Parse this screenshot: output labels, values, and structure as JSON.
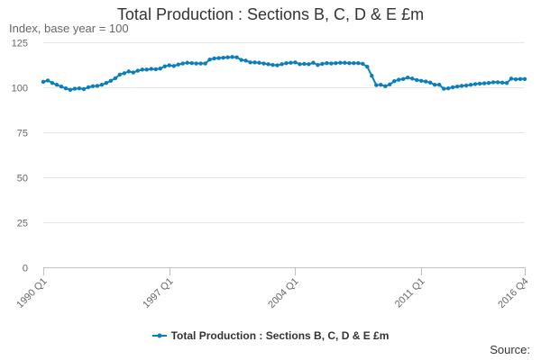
{
  "chart_data": {
    "type": "line",
    "title": "Total Production : Sections B, C, D & E £m",
    "ylabel": "Index, base year = 100",
    "xlabel": "",
    "ylim": [
      0,
      125
    ],
    "yticks": [
      0,
      25,
      50,
      75,
      100,
      125
    ],
    "x_tick_labels": [
      "1990 Q1",
      "1997 Q1",
      "2004 Q1",
      "2011 Q1",
      "2016 Q4"
    ],
    "x_tick_indices": [
      0,
      28,
      56,
      84,
      107
    ],
    "grid": true,
    "legend_position": "bottom",
    "color": "#0b7fbd",
    "x": [
      "1990 Q1",
      "1990 Q2",
      "1990 Q3",
      "1990 Q4",
      "1991 Q1",
      "1991 Q2",
      "1991 Q3",
      "1991 Q4",
      "1992 Q1",
      "1992 Q2",
      "1992 Q3",
      "1992 Q4",
      "1993 Q1",
      "1993 Q2",
      "1993 Q3",
      "1993 Q4",
      "1994 Q1",
      "1994 Q2",
      "1994 Q3",
      "1994 Q4",
      "1995 Q1",
      "1995 Q2",
      "1995 Q3",
      "1995 Q4",
      "1996 Q1",
      "1996 Q2",
      "1996 Q3",
      "1996 Q4",
      "1997 Q1",
      "1997 Q2",
      "1997 Q3",
      "1997 Q4",
      "1998 Q1",
      "1998 Q2",
      "1998 Q3",
      "1998 Q4",
      "1999 Q1",
      "1999 Q2",
      "1999 Q3",
      "1999 Q4",
      "2000 Q1",
      "2000 Q2",
      "2000 Q3",
      "2000 Q4",
      "2001 Q1",
      "2001 Q2",
      "2001 Q3",
      "2001 Q4",
      "2002 Q1",
      "2002 Q2",
      "2002 Q3",
      "2002 Q4",
      "2003 Q1",
      "2003 Q2",
      "2003 Q3",
      "2003 Q4",
      "2004 Q1",
      "2004 Q2",
      "2004 Q3",
      "2004 Q4",
      "2005 Q1",
      "2005 Q2",
      "2005 Q3",
      "2005 Q4",
      "2006 Q1",
      "2006 Q2",
      "2006 Q3",
      "2006 Q4",
      "2007 Q1",
      "2007 Q2",
      "2007 Q3",
      "2007 Q4",
      "2008 Q1",
      "2008 Q2",
      "2008 Q3",
      "2008 Q4",
      "2009 Q1",
      "2009 Q2",
      "2009 Q3",
      "2009 Q4",
      "2010 Q1",
      "2010 Q2",
      "2010 Q3",
      "2010 Q4",
      "2011 Q1",
      "2011 Q2",
      "2011 Q3",
      "2011 Q4",
      "2012 Q1",
      "2012 Q2",
      "2012 Q3",
      "2012 Q4",
      "2013 Q1",
      "2013 Q2",
      "2013 Q3",
      "2013 Q4",
      "2014 Q1",
      "2014 Q2",
      "2014 Q3",
      "2014 Q4",
      "2015 Q1",
      "2015 Q2",
      "2015 Q3",
      "2015 Q4",
      "2016 Q1",
      "2016 Q2",
      "2016 Q3",
      "2016 Q4"
    ],
    "series": [
      {
        "name": "Total Production : Sections B, C, D & E £m",
        "values": [
          102.8,
          103.6,
          102.2,
          101.2,
          100.2,
          99.2,
          98.4,
          99.0,
          99.2,
          98.8,
          99.8,
          100.4,
          100.6,
          101.2,
          102.2,
          103.4,
          104.8,
          106.8,
          107.6,
          108.6,
          108.0,
          109.0,
          109.6,
          109.6,
          110.0,
          109.8,
          110.2,
          111.4,
          112.0,
          111.6,
          112.4,
          113.0,
          113.4,
          113.2,
          113.0,
          113.0,
          113.0,
          115.2,
          115.8,
          116.0,
          116.2,
          116.4,
          116.6,
          116.4,
          115.0,
          114.6,
          113.6,
          113.6,
          113.4,
          113.0,
          112.6,
          112.2,
          112.0,
          112.6,
          113.2,
          113.4,
          113.6,
          112.6,
          112.8,
          112.6,
          113.4,
          112.2,
          112.8,
          113.2,
          113.0,
          113.2,
          113.4,
          113.4,
          113.2,
          113.2,
          113.2,
          112.8,
          111.2,
          106.2,
          101.0,
          101.2,
          100.4,
          101.4,
          103.2,
          104.0,
          104.4,
          105.2,
          104.6,
          103.8,
          103.4,
          103.0,
          102.4,
          101.2,
          101.2,
          99.0,
          99.2,
          99.8,
          100.2,
          100.6,
          100.8,
          101.2,
          101.6,
          101.8,
          102.0,
          102.2,
          102.6,
          102.6,
          102.4,
          102.2,
          104.6,
          104.2,
          104.4,
          104.4
        ]
      }
    ]
  },
  "footer": {
    "source_label": "Source:"
  }
}
